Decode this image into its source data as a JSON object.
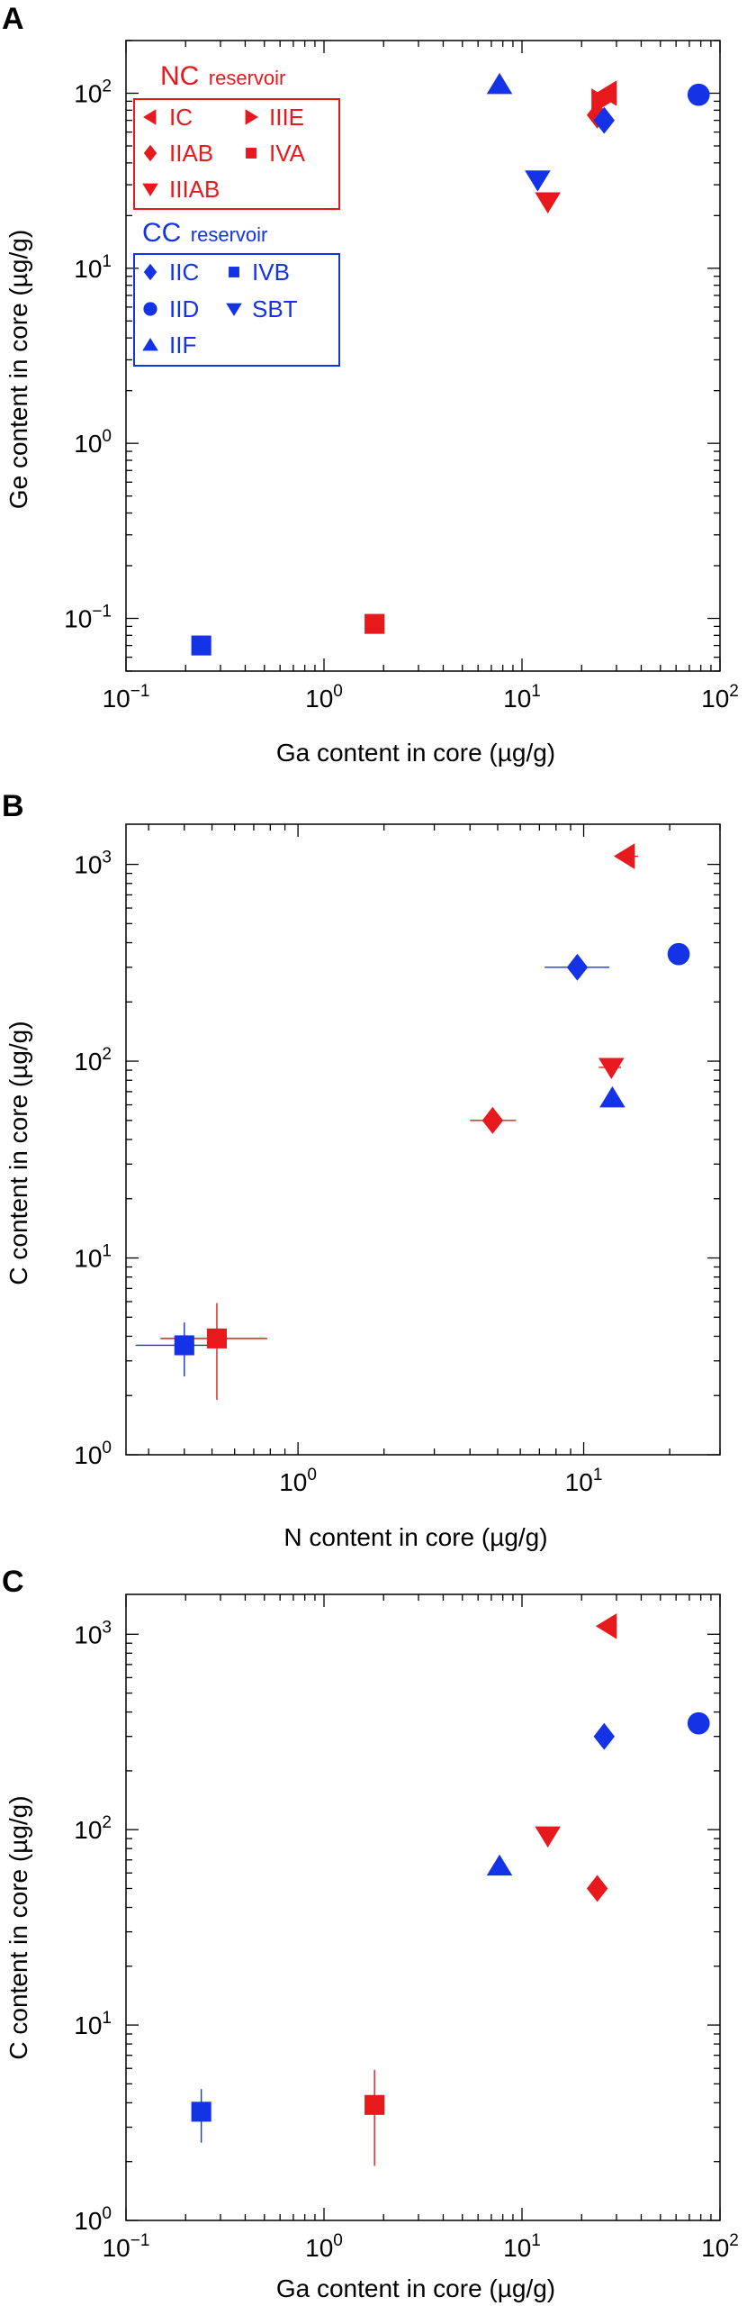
{
  "colors": {
    "nc": "#e8191c",
    "cc": "#1432e6",
    "axis": "#000000"
  },
  "legend": {
    "nc": {
      "title_main": "NC",
      "title_sub": "reservoir",
      "items": [
        {
          "label": "IC",
          "marker": "triangle-left"
        },
        {
          "label": "IIIE",
          "marker": "triangle-right"
        },
        {
          "label": "IIAB",
          "marker": "diamond"
        },
        {
          "label": "IVA",
          "marker": "square"
        },
        {
          "label": "IIIAB",
          "marker": "triangle-down"
        }
      ]
    },
    "cc": {
      "title_main": "CC",
      "title_sub": "reservoir",
      "items": [
        {
          "label": "IIC",
          "marker": "diamond"
        },
        {
          "label": "IVB",
          "marker": "square"
        },
        {
          "label": "IID",
          "marker": "circle"
        },
        {
          "label": "SBT",
          "marker": "triangle-down"
        },
        {
          "label": "IIF",
          "marker": "triangle-up"
        }
      ]
    }
  },
  "chart_data": [
    {
      "panel": "A",
      "type": "scatter",
      "xlabel": "Ga content in core (µg/g)",
      "ylabel": "Ge content in core (µg/g)",
      "x_scale": "log",
      "y_scale": "log",
      "xlim": [
        0.1,
        100
      ],
      "ylim": [
        0.05,
        200
      ],
      "x_ticks": [
        {
          "value": 0.1,
          "base": "10",
          "exp": "−1"
        },
        {
          "value": 1,
          "base": "10",
          "exp": "0"
        },
        {
          "value": 10,
          "base": "10",
          "exp": "1"
        },
        {
          "value": 100,
          "base": "10",
          "exp": "2"
        }
      ],
      "y_ticks": [
        {
          "value": 0.1,
          "base": "10",
          "exp": "−1"
        },
        {
          "value": 1,
          "base": "10",
          "exp": "0"
        },
        {
          "value": 10,
          "base": "10",
          "exp": "1"
        },
        {
          "value": 100,
          "base": "10",
          "exp": "2"
        }
      ],
      "series": [
        {
          "name": "IC",
          "reservoir": "nc",
          "marker": "triangle-left",
          "x": 27,
          "y": 100
        },
        {
          "name": "IIIE",
          "reservoir": "nc",
          "marker": "triangle-right",
          "x": 25,
          "y": 90
        },
        {
          "name": "IIAB",
          "reservoir": "nc",
          "marker": "diamond",
          "x": 24,
          "y": 75
        },
        {
          "name": "IVA",
          "reservoir": "nc",
          "marker": "square",
          "x": 1.8,
          "y": 0.093
        },
        {
          "name": "IIIAB",
          "reservoir": "nc",
          "marker": "triangle-down",
          "x": 13.5,
          "y": 24
        },
        {
          "name": "IIC",
          "reservoir": "cc",
          "marker": "diamond",
          "x": 26,
          "y": 70
        },
        {
          "name": "IVB",
          "reservoir": "cc",
          "marker": "square",
          "x": 0.24,
          "y": 0.07
        },
        {
          "name": "IID",
          "reservoir": "cc",
          "marker": "circle",
          "x": 78,
          "y": 98
        },
        {
          "name": "SBT",
          "reservoir": "cc",
          "marker": "triangle-down",
          "x": 12,
          "y": 32
        },
        {
          "name": "IIF",
          "reservoir": "cc",
          "marker": "triangle-up",
          "x": 7.7,
          "y": 112
        }
      ]
    },
    {
      "panel": "B",
      "type": "scatter",
      "xlabel": "N content in core (µg/g)",
      "ylabel": "C content in core (µg/g)",
      "x_scale": "log",
      "y_scale": "log",
      "xlim": [
        0.25,
        30
      ],
      "ylim": [
        1,
        1600
      ],
      "x_ticks": [
        {
          "value": 1,
          "base": "10",
          "exp": "0"
        },
        {
          "value": 10,
          "base": "10",
          "exp": "1"
        }
      ],
      "y_ticks": [
        {
          "value": 1,
          "base": "10",
          "exp": "0"
        },
        {
          "value": 10,
          "base": "10",
          "exp": "1"
        },
        {
          "value": 100,
          "base": "10",
          "exp": "2"
        },
        {
          "value": 1000,
          "base": "10",
          "exp": "3"
        }
      ],
      "series": [
        {
          "name": "IC",
          "reservoir": "nc",
          "marker": "triangle-left",
          "x": 14,
          "y": 1100,
          "x_err": [
            13,
            15.5
          ]
        },
        {
          "name": "IIAB",
          "reservoir": "nc",
          "marker": "diamond",
          "x": 4.8,
          "y": 50,
          "x_err": [
            4.0,
            5.8
          ]
        },
        {
          "name": "IVA",
          "reservoir": "nc",
          "marker": "square",
          "x": 0.52,
          "y": 3.9,
          "x_err": [
            0.33,
            0.78
          ],
          "y_err": [
            1.9,
            5.9
          ]
        },
        {
          "name": "IIIAB",
          "reservoir": "nc",
          "marker": "triangle-down",
          "x": 12.5,
          "y": 93,
          "x_err": [
            11.3,
            13.5
          ]
        },
        {
          "name": "IIC",
          "reservoir": "cc",
          "marker": "diamond",
          "x": 9.5,
          "y": 300,
          "x_err": [
            7.3,
            12.3
          ]
        },
        {
          "name": "IVB",
          "reservoir": "cc",
          "marker": "square",
          "x": 0.4,
          "y": 3.6,
          "x_err": [
            0.27,
            0.53
          ],
          "y_err": [
            2.5,
            4.7
          ]
        },
        {
          "name": "IID",
          "reservoir": "cc",
          "marker": "circle",
          "x": 21.5,
          "y": 350
        },
        {
          "name": "IIF",
          "reservoir": "cc",
          "marker": "triangle-up",
          "x": 12.6,
          "y": 65
        }
      ]
    },
    {
      "panel": "C",
      "type": "scatter",
      "xlabel": "Ga content in core (µg/g)",
      "ylabel": "C content in core (µg/g)",
      "x_scale": "log",
      "y_scale": "log",
      "xlim": [
        0.1,
        100
      ],
      "ylim": [
        1,
        1600
      ],
      "x_ticks": [
        {
          "value": 0.1,
          "base": "10",
          "exp": "−1"
        },
        {
          "value": 1,
          "base": "10",
          "exp": "0"
        },
        {
          "value": 10,
          "base": "10",
          "exp": "1"
        },
        {
          "value": 100,
          "base": "10",
          "exp": "2"
        }
      ],
      "y_ticks": [
        {
          "value": 1,
          "base": "10",
          "exp": "0"
        },
        {
          "value": 10,
          "base": "10",
          "exp": "1"
        },
        {
          "value": 100,
          "base": "10",
          "exp": "2"
        },
        {
          "value": 1000,
          "base": "10",
          "exp": "3"
        }
      ],
      "series": [
        {
          "name": "IC",
          "reservoir": "nc",
          "marker": "triangle-left",
          "x": 27,
          "y": 1100
        },
        {
          "name": "IIAB",
          "reservoir": "nc",
          "marker": "diamond",
          "x": 24,
          "y": 50
        },
        {
          "name": "IVA",
          "reservoir": "nc",
          "marker": "square",
          "x": 1.8,
          "y": 3.9,
          "y_err": [
            1.9,
            5.9
          ]
        },
        {
          "name": "IIIAB",
          "reservoir": "nc",
          "marker": "triangle-down",
          "x": 13.5,
          "y": 93
        },
        {
          "name": "IIC",
          "reservoir": "cc",
          "marker": "diamond",
          "x": 26,
          "y": 300
        },
        {
          "name": "IVB",
          "reservoir": "cc",
          "marker": "square",
          "x": 0.24,
          "y": 3.6,
          "y_err": [
            2.5,
            4.7
          ]
        },
        {
          "name": "IID",
          "reservoir": "cc",
          "marker": "circle",
          "x": 78,
          "y": 350
        },
        {
          "name": "IIF",
          "reservoir": "cc",
          "marker": "triangle-up",
          "x": 7.7,
          "y": 65
        }
      ]
    }
  ]
}
